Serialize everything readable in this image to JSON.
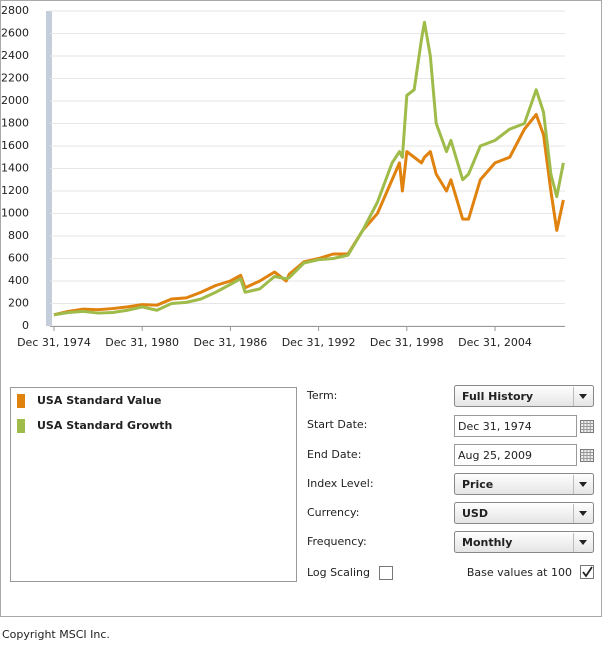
{
  "chart_data": {
    "type": "line",
    "x": [
      1975,
      1976,
      1977,
      1978,
      1979,
      1980,
      1981,
      1982,
      1983,
      1984,
      1985,
      1986,
      1987,
      1987.7,
      1988,
      1989,
      1990,
      1990.8,
      1991,
      1992,
      1993,
      1994,
      1995,
      1996,
      1997,
      1998,
      1998.5,
      1998.7,
      1999,
      1999.5,
      2000,
      2000.2,
      2000.6,
      2001,
      2001.7,
      2002,
      2002.8,
      2003.2,
      2004,
      2005,
      2006,
      2007,
      2007.8,
      2008.3,
      2008.8,
      2009.2,
      2009.65
    ],
    "series": [
      {
        "name": "USA Standard Value",
        "color": "#e0820e",
        "values": [
          100,
          130,
          150,
          145,
          155,
          170,
          190,
          185,
          240,
          250,
          300,
          360,
          400,
          450,
          340,
          400,
          480,
          400,
          460,
          570,
          600,
          640,
          640,
          850,
          1000,
          1300,
          1450,
          1200,
          1550,
          1500,
          1450,
          1500,
          1550,
          1350,
          1200,
          1300,
          950,
          950,
          1300,
          1450,
          1500,
          1750,
          1880,
          1700,
          1200,
          850,
          1120
        ]
      },
      {
        "name": "USA Standard Growth",
        "color": "#9fbb4a",
        "values": [
          100,
          120,
          130,
          115,
          120,
          140,
          170,
          140,
          200,
          210,
          240,
          300,
          370,
          420,
          300,
          330,
          440,
          420,
          430,
          560,
          590,
          600,
          630,
          850,
          1100,
          1450,
          1550,
          1500,
          2050,
          2100,
          2550,
          2700,
          2400,
          1800,
          1550,
          1650,
          1300,
          1350,
          1600,
          1650,
          1750,
          1800,
          2100,
          1900,
          1350,
          1150,
          1450
        ]
      }
    ],
    "xlim": [
      1974.73,
      2009.76
    ],
    "xticks": [
      {
        "value": 1975,
        "label": "Dec 31, 1974"
      },
      {
        "value": 1981,
        "label": "Dec 31, 1980"
      },
      {
        "value": 1987,
        "label": "Dec 31, 1986"
      },
      {
        "value": 1993,
        "label": "Dec 31, 1992"
      },
      {
        "value": 1999,
        "label": "Dec 31, 1998"
      },
      {
        "value": 2005,
        "label": "Dec 31, 2004"
      }
    ],
    "ylim": [
      0,
      2800
    ],
    "yticks": [
      0,
      200,
      400,
      600,
      800,
      1000,
      1200,
      1400,
      1600,
      1800,
      2000,
      2200,
      2400,
      2600,
      2800
    ],
    "grid": true
  },
  "form": {
    "term": {
      "label": "Term:",
      "value": "Full History"
    },
    "start_date": {
      "label": "Start Date:",
      "value": "Dec 31, 1974"
    },
    "end_date": {
      "label": "End Date:",
      "value": "Aug 25, 2009"
    },
    "index_level": {
      "label": "Index Level:",
      "value": "Price"
    },
    "currency": {
      "label": "Currency:",
      "value": "USD"
    },
    "frequency": {
      "label": "Frequency:",
      "value": "Monthly"
    },
    "log_scaling": {
      "label": "Log Scaling",
      "checked": false
    },
    "base_values": {
      "label": "Base values at 100",
      "checked": true
    }
  },
  "footer": "Copyright MSCI Inc."
}
